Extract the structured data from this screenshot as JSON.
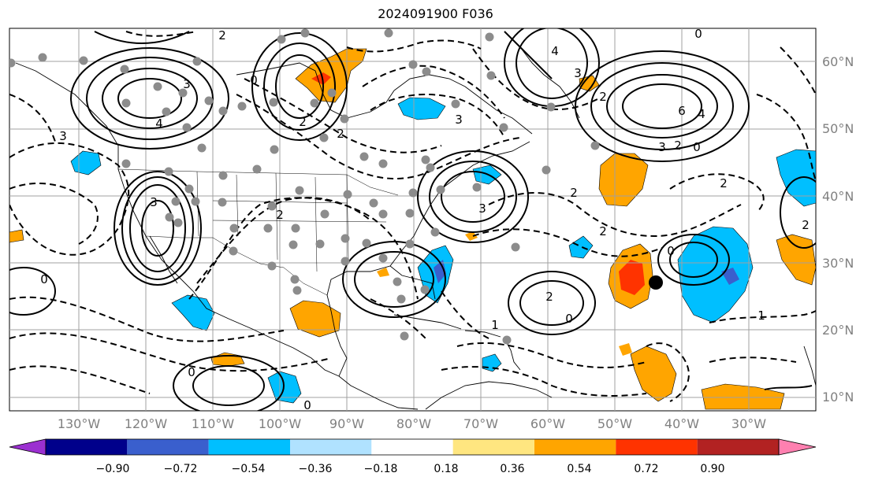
{
  "title": "2024091900 F036",
  "lat_labels": [
    "60°N",
    "50°N",
    "40°N",
    "30°N",
    "20°N",
    "10°N"
  ],
  "lon_labels": [
    "130°W",
    "120°W",
    "110°W",
    "100°W",
    "90°W",
    "80°W",
    "70°W",
    "60°W",
    "50°W",
    "40°W",
    "30°W"
  ],
  "colorbar": {
    "ticks": [
      "−0.90",
      "−0.72",
      "−0.54",
      "−0.36",
      "−0.18",
      "0.18",
      "0.36",
      "0.54",
      "0.72",
      "0.90"
    ],
    "colors": [
      "#9b30d0",
      "#00008b",
      "#3a5fcd",
      "#00bfff",
      "#b0e2ff",
      "#ffffff",
      "#ffe680",
      "#ffa500",
      "#ff3300",
      "#b22222",
      "#ff80b0"
    ]
  },
  "contour_labels": [
    "2",
    "0",
    "3",
    "4",
    "2",
    "3",
    "6",
    "4",
    "2",
    "0",
    "3",
    "2",
    "0",
    "2",
    "4",
    "3",
    "2",
    "1",
    "0",
    "2",
    "0",
    "1",
    "2",
    "3",
    "2",
    "0",
    "0",
    "0",
    "3",
    "2",
    "2",
    "3"
  ],
  "storm_marker": "black-dot"
}
